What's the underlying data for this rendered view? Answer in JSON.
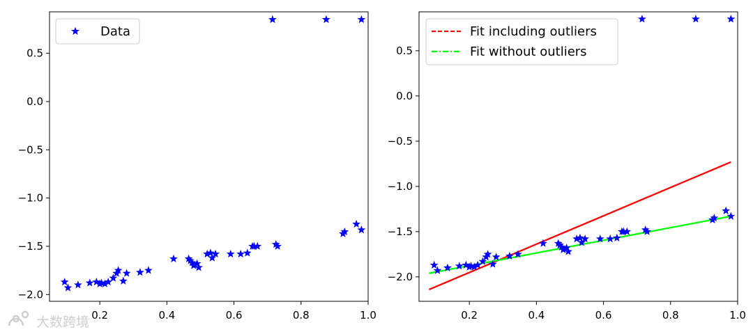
{
  "chart_data": [
    {
      "type": "scatter",
      "title": "",
      "xlabel": "",
      "ylabel": "",
      "xlim": [
        0.05,
        1.0
      ],
      "ylim": [
        -2.07,
        0.93
      ],
      "xticks": [
        0.2,
        0.4,
        0.6,
        0.8,
        1.0
      ],
      "xtick_labels": [
        "0.2",
        "0.4",
        "0.6",
        "0.8",
        "1.0"
      ],
      "yticks": [
        -2.0,
        -1.5,
        -1.0,
        -0.5,
        0.0,
        0.5
      ],
      "ytick_labels": [
        "−2.0",
        "−1.5",
        "−1.0",
        "−0.5",
        "0.0",
        "0.5"
      ],
      "legend": {
        "position": "upper-left",
        "entries": [
          {
            "label": "Data",
            "marker": "star",
            "color": "#0000ff"
          }
        ]
      },
      "series": [
        {
          "name": "Data",
          "marker": "star",
          "color": "#0000ff",
          "x": [
            0.095,
            0.105,
            0.135,
            0.17,
            0.19,
            0.2,
            0.205,
            0.215,
            0.225,
            0.24,
            0.25,
            0.255,
            0.27,
            0.28,
            0.32,
            0.345,
            0.42,
            0.465,
            0.47,
            0.475,
            0.48,
            0.49,
            0.495,
            0.52,
            0.53,
            0.535,
            0.545,
            0.59,
            0.62,
            0.64,
            0.655,
            0.66,
            0.67,
            0.725,
            0.73,
            0.925,
            0.93,
            0.965,
            0.98,
            0.715,
            0.875,
            0.98
          ],
          "y": [
            -1.87,
            -1.93,
            -1.9,
            -1.88,
            -1.87,
            -1.89,
            -1.88,
            -1.89,
            -1.87,
            -1.83,
            -1.78,
            -1.75,
            -1.86,
            -1.78,
            -1.77,
            -1.75,
            -1.63,
            -1.63,
            -1.65,
            -1.67,
            -1.7,
            -1.68,
            -1.72,
            -1.58,
            -1.57,
            -1.62,
            -1.58,
            -1.58,
            -1.58,
            -1.57,
            -1.5,
            -1.5,
            -1.5,
            -1.48,
            -1.5,
            -1.37,
            -1.35,
            -1.27,
            -1.33,
            0.85,
            0.85,
            0.85
          ]
        }
      ]
    },
    {
      "type": "scatter",
      "title": "",
      "xlabel": "",
      "ylabel": "",
      "xlim": [
        0.05,
        1.0
      ],
      "ylim": [
        -2.27,
        0.93
      ],
      "xticks": [
        0.2,
        0.4,
        0.6,
        0.8,
        1.0
      ],
      "xtick_labels": [
        "0.2",
        "0.4",
        "0.6",
        "0.8",
        "1.0"
      ],
      "yticks": [
        -2.0,
        -1.5,
        -1.0,
        -0.5,
        0.0,
        0.5
      ],
      "ytick_labels": [
        "−2.0",
        "−1.5",
        "−1.0",
        "−0.5",
        "0.0",
        "0.5"
      ],
      "legend": {
        "position": "upper-left",
        "entries": [
          {
            "label": "Fit including outliers",
            "style": "dashed",
            "color": "#ff0000"
          },
          {
            "label": "Fit without outliers",
            "style": "dashdot",
            "color": "#00ff00"
          }
        ]
      },
      "series": [
        {
          "name": "Data",
          "marker": "star",
          "color": "#0000ff",
          "x": [
            0.095,
            0.105,
            0.135,
            0.17,
            0.19,
            0.2,
            0.205,
            0.215,
            0.225,
            0.24,
            0.25,
            0.255,
            0.27,
            0.28,
            0.32,
            0.345,
            0.42,
            0.465,
            0.47,
            0.475,
            0.48,
            0.49,
            0.495,
            0.52,
            0.53,
            0.535,
            0.545,
            0.59,
            0.62,
            0.64,
            0.655,
            0.66,
            0.67,
            0.725,
            0.73,
            0.925,
            0.93,
            0.965,
            0.98,
            0.715,
            0.875,
            0.98
          ],
          "y": [
            -1.87,
            -1.93,
            -1.9,
            -1.88,
            -1.87,
            -1.89,
            -1.88,
            -1.89,
            -1.87,
            -1.83,
            -1.78,
            -1.75,
            -1.86,
            -1.78,
            -1.77,
            -1.75,
            -1.63,
            -1.63,
            -1.65,
            -1.67,
            -1.7,
            -1.68,
            -1.72,
            -1.58,
            -1.57,
            -1.62,
            -1.58,
            -1.58,
            -1.58,
            -1.57,
            -1.5,
            -1.5,
            -1.5,
            -1.48,
            -1.5,
            -1.37,
            -1.35,
            -1.27,
            -1.33,
            0.85,
            0.85,
            0.85
          ]
        },
        {
          "name": "Fit including outliers",
          "type": "line",
          "color": "#ff0000",
          "x": [
            0.08,
            0.98
          ],
          "y": [
            -2.14,
            -0.73
          ]
        },
        {
          "name": "Fit without outliers",
          "type": "line",
          "color": "#00ff00",
          "x": [
            0.08,
            0.98
          ],
          "y": [
            -1.96,
            -1.33
          ]
        }
      ]
    }
  ],
  "watermark": {
    "text": "大数跨境"
  }
}
